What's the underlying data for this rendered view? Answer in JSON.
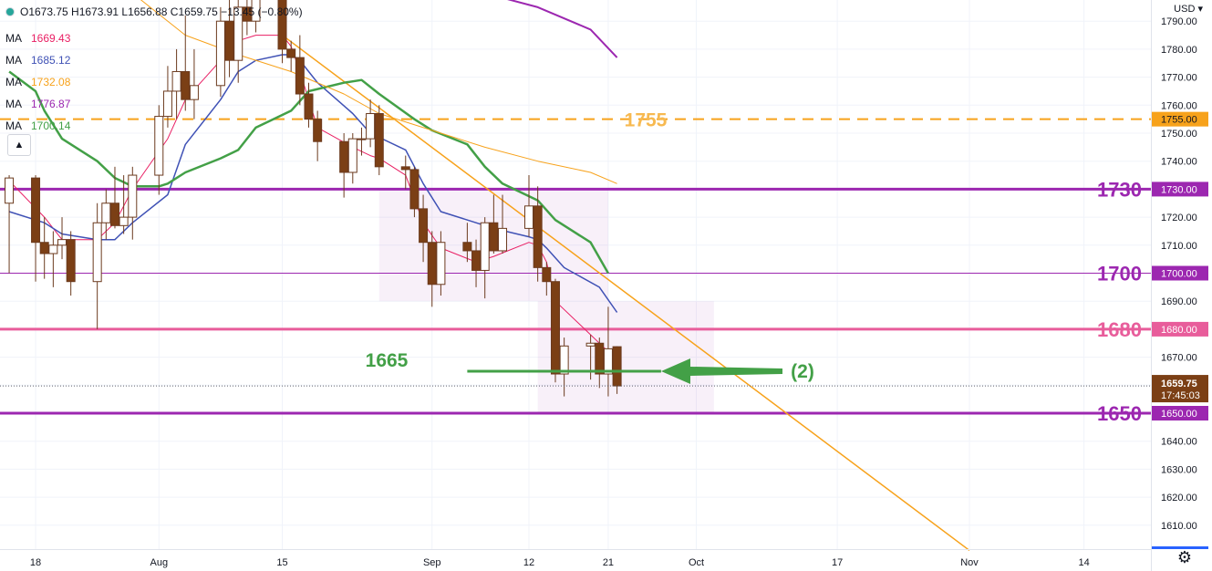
{
  "header": {
    "ohlc_label": "O1673.75 H1673.91 L1656.88 C1659.75 −13.45 (−0.80%)",
    "currency": "USD"
  },
  "ma_legend": [
    {
      "label": "MA",
      "value": "1669.43",
      "color": "#e91e63"
    },
    {
      "label": "MA",
      "value": "1685.12",
      "color": "#3f51b5"
    },
    {
      "label": "MA",
      "value": "1732.08",
      "color": "#f7a21b"
    },
    {
      "label": "MA",
      "value": "1776.87",
      "color": "#9c27b0"
    },
    {
      "label": "MA",
      "value": "1700.14",
      "color": "#43a047"
    }
  ],
  "collapse_icon": "chevron-up-icon",
  "settings_icon": "gear-icon",
  "chart_data": {
    "type": "candlestick",
    "ylim": [
      1601,
      1795
    ],
    "y_ticks": [
      1610,
      1620,
      1630,
      1640,
      1650,
      1660,
      1670,
      1680,
      1690,
      1700,
      1710,
      1720,
      1730,
      1740,
      1750,
      1760,
      1770,
      1780,
      1790
    ],
    "x_ticks": [
      {
        "label": "18",
        "date": "2022-07-18"
      },
      {
        "label": "Aug",
        "date": "2022-08-01"
      },
      {
        "label": "15",
        "date": "2022-08-15"
      },
      {
        "label": "Sep",
        "date": "2022-09-01"
      },
      {
        "label": "12",
        "date": "2022-09-12"
      },
      {
        "label": "21",
        "date": "2022-09-21"
      },
      {
        "label": "Oct",
        "date": "2022-10-01"
      },
      {
        "label": "17",
        "date": "2022-10-17"
      },
      {
        "label": "Nov",
        "date": "2022-11-01"
      },
      {
        "label": "14",
        "date": "2022-11-14"
      }
    ],
    "candles": [
      {
        "date": "2022-07-15",
        "o": 1725,
        "h": 1735,
        "l": 1700,
        "c": 1734
      },
      {
        "date": "2022-07-18",
        "o": 1734,
        "h": 1735,
        "l": 1697,
        "c": 1711
      },
      {
        "date": "2022-07-19",
        "o": 1711,
        "h": 1720,
        "l": 1698,
        "c": 1707
      },
      {
        "date": "2022-07-20",
        "o": 1707,
        "h": 1715,
        "l": 1695,
        "c": 1710
      },
      {
        "date": "2022-07-21",
        "o": 1710,
        "h": 1720,
        "l": 1705,
        "c": 1712
      },
      {
        "date": "2022-07-22",
        "o": 1712,
        "h": 1715,
        "l": 1692,
        "c": 1697
      },
      {
        "date": "2022-07-25",
        "o": 1697,
        "h": 1725,
        "l": 1680,
        "c": 1718
      },
      {
        "date": "2022-07-26",
        "o": 1718,
        "h": 1730,
        "l": 1712,
        "c": 1725
      },
      {
        "date": "2022-07-27",
        "o": 1725,
        "h": 1738,
        "l": 1716,
        "c": 1717
      },
      {
        "date": "2022-07-28",
        "o": 1717,
        "h": 1735,
        "l": 1714,
        "c": 1720
      },
      {
        "date": "2022-07-29",
        "o": 1720,
        "h": 1738,
        "l": 1712,
        "c": 1735
      },
      {
        "date": "2022-08-01",
        "o": 1735,
        "h": 1760,
        "l": 1728,
        "c": 1756
      },
      {
        "date": "2022-08-02",
        "o": 1756,
        "h": 1774,
        "l": 1752,
        "c": 1765
      },
      {
        "date": "2022-08-03",
        "o": 1765,
        "h": 1780,
        "l": 1755,
        "c": 1772
      },
      {
        "date": "2022-08-04",
        "o": 1772,
        "h": 1792,
        "l": 1758,
        "c": 1762
      },
      {
        "date": "2022-08-05",
        "o": 1762,
        "h": 1780,
        "l": 1755,
        "c": 1767
      },
      {
        "date": "2022-08-08",
        "o": 1767,
        "h": 1795,
        "l": 1763,
        "c": 1790
      },
      {
        "date": "2022-08-09",
        "o": 1790,
        "h": 1798,
        "l": 1770,
        "c": 1776
      },
      {
        "date": "2022-08-10",
        "o": 1776,
        "h": 1800,
        "l": 1768,
        "c": 1795
      },
      {
        "date": "2022-08-11",
        "o": 1795,
        "h": 1802,
        "l": 1785,
        "c": 1790
      },
      {
        "date": "2022-08-12",
        "o": 1790,
        "h": 1805,
        "l": 1786,
        "c": 1800
      },
      {
        "date": "2022-08-15",
        "o": 1800,
        "h": 1805,
        "l": 1775,
        "c": 1780
      },
      {
        "date": "2022-08-16",
        "o": 1780,
        "h": 1783,
        "l": 1772,
        "c": 1777
      },
      {
        "date": "2022-08-17",
        "o": 1777,
        "h": 1785,
        "l": 1760,
        "c": 1764
      },
      {
        "date": "2022-08-18",
        "o": 1764,
        "h": 1768,
        "l": 1752,
        "c": 1755
      },
      {
        "date": "2022-08-19",
        "o": 1755,
        "h": 1758,
        "l": 1740,
        "c": 1747
      },
      {
        "date": "2022-08-22",
        "o": 1747,
        "h": 1750,
        "l": 1727,
        "c": 1736
      },
      {
        "date": "2022-08-23",
        "o": 1736,
        "h": 1750,
        "l": 1732,
        "c": 1748
      },
      {
        "date": "2022-08-24",
        "o": 1748,
        "h": 1752,
        "l": 1742,
        "c": 1748
      },
      {
        "date": "2022-08-25",
        "o": 1748,
        "h": 1762,
        "l": 1745,
        "c": 1757
      },
      {
        "date": "2022-08-26",
        "o": 1757,
        "h": 1760,
        "l": 1735,
        "c": 1738
      },
      {
        "date": "2022-08-29",
        "o": 1738,
        "h": 1742,
        "l": 1730,
        "c": 1737
      },
      {
        "date": "2022-08-30",
        "o": 1737,
        "h": 1738,
        "l": 1720,
        "c": 1723
      },
      {
        "date": "2022-08-31",
        "o": 1723,
        "h": 1728,
        "l": 1704,
        "c": 1711
      },
      {
        "date": "2022-09-01",
        "o": 1711,
        "h": 1715,
        "l": 1688,
        "c": 1696
      },
      {
        "date": "2022-09-02",
        "o": 1696,
        "h": 1715,
        "l": 1692,
        "c": 1711
      },
      {
        "date": "2022-09-05",
        "o": 1711,
        "h": 1718,
        "l": 1704,
        "c": 1708
      },
      {
        "date": "2022-09-06",
        "o": 1708,
        "h": 1712,
        "l": 1695,
        "c": 1701
      },
      {
        "date": "2022-09-07",
        "o": 1701,
        "h": 1720,
        "l": 1691,
        "c": 1718
      },
      {
        "date": "2022-09-08",
        "o": 1718,
        "h": 1728,
        "l": 1707,
        "c": 1708
      },
      {
        "date": "2022-09-09",
        "o": 1708,
        "h": 1728,
        "l": 1707,
        "c": 1716
      },
      {
        "date": "2022-09-12",
        "o": 1716,
        "h": 1735,
        "l": 1713,
        "c": 1724
      },
      {
        "date": "2022-09-13",
        "o": 1724,
        "h": 1731,
        "l": 1697,
        "c": 1702
      },
      {
        "date": "2022-09-14",
        "o": 1702,
        "h": 1704,
        "l": 1692,
        "c": 1697
      },
      {
        "date": "2022-09-15",
        "o": 1697,
        "h": 1698,
        "l": 1661,
        "c": 1664
      },
      {
        "date": "2022-09-16",
        "o": 1664,
        "h": 1677,
        "l": 1656,
        "c": 1674
      },
      {
        "date": "2022-09-19",
        "o": 1674,
        "h": 1678,
        "l": 1662,
        "c": 1675
      },
      {
        "date": "2022-09-20",
        "o": 1675,
        "h": 1677,
        "l": 1659,
        "c": 1664
      },
      {
        "date": "2022-09-21",
        "o": 1664,
        "h": 1688,
        "l": 1656,
        "c": 1673
      },
      {
        "date": "2022-09-22",
        "o": 1673.75,
        "h": 1673.91,
        "l": 1656.88,
        "c": 1659.75
      }
    ],
    "moving_averages": [
      {
        "value": "1669.43",
        "color": "#e91e63",
        "width": 1,
        "points": [
          [
            0,
            1733
          ],
          [
            2,
            1720
          ],
          [
            4,
            1712
          ],
          [
            6,
            1712
          ],
          [
            8,
            1718
          ],
          [
            10,
            1730
          ],
          [
            12,
            1748
          ],
          [
            14,
            1762
          ],
          [
            16,
            1776
          ],
          [
            18,
            1783
          ],
          [
            20,
            1785
          ],
          [
            21,
            1785
          ],
          [
            22,
            1781
          ],
          [
            23,
            1772
          ],
          [
            24,
            1762
          ],
          [
            25,
            1752
          ],
          [
            27,
            1745
          ],
          [
            29,
            1742
          ],
          [
            30,
            1741
          ],
          [
            31,
            1735
          ],
          [
            33,
            1718
          ],
          [
            35,
            1709
          ],
          [
            37,
            1704
          ],
          [
            39,
            1706
          ],
          [
            41,
            1711
          ],
          [
            42,
            1710
          ],
          [
            43,
            1704
          ],
          [
            44,
            1690
          ],
          [
            46,
            1678
          ],
          [
            47,
            1675
          ],
          [
            49,
            1669
          ]
        ]
      },
      {
        "value": "1685.12",
        "color": "#3f51b5",
        "width": 1.5,
        "points": [
          [
            0,
            1722
          ],
          [
            2,
            1718
          ],
          [
            4,
            1714
          ],
          [
            6,
            1712
          ],
          [
            8,
            1712
          ],
          [
            10,
            1718
          ],
          [
            12,
            1728
          ],
          [
            14,
            1746
          ],
          [
            16,
            1762
          ],
          [
            18,
            1772
          ],
          [
            20,
            1776
          ],
          [
            21,
            1778
          ],
          [
            22,
            1778
          ],
          [
            23,
            1776
          ],
          [
            24,
            1772
          ],
          [
            25,
            1768
          ],
          [
            27,
            1757
          ],
          [
            29,
            1750
          ],
          [
            31,
            1744
          ],
          [
            33,
            1732
          ],
          [
            35,
            1722
          ],
          [
            37,
            1718
          ],
          [
            39,
            1716
          ],
          [
            41,
            1713
          ],
          [
            42,
            1712
          ],
          [
            43,
            1709
          ],
          [
            45,
            1702
          ],
          [
            47,
            1695
          ],
          [
            49,
            1686
          ]
        ]
      },
      {
        "value": "1700.14",
        "color": "#43a047",
        "width": 2.5,
        "points": [
          [
            0,
            1772
          ],
          [
            1,
            1765
          ],
          [
            2,
            1758
          ],
          [
            4,
            1748
          ],
          [
            6,
            1740
          ],
          [
            8,
            1734
          ],
          [
            10,
            1731
          ],
          [
            11,
            1731
          ],
          [
            12,
            1732
          ],
          [
            14,
            1736
          ],
          [
            16,
            1741
          ],
          [
            18,
            1744
          ],
          [
            20,
            1752
          ],
          [
            22,
            1758
          ],
          [
            24,
            1765
          ],
          [
            26,
            1768
          ],
          [
            28,
            1769
          ],
          [
            30,
            1764
          ],
          [
            32,
            1755
          ],
          [
            34,
            1751
          ],
          [
            36,
            1746
          ],
          [
            38,
            1738
          ],
          [
            40,
            1732
          ],
          [
            42,
            1726
          ],
          [
            44,
            1719
          ],
          [
            46,
            1711
          ],
          [
            48,
            1700
          ]
        ]
      },
      {
        "value": "1732.08",
        "color": "#f7a21b",
        "width": 1,
        "points": [
          [
            10,
            1800
          ],
          [
            14,
            1785
          ],
          [
            18,
            1778
          ],
          [
            22,
            1772
          ],
          [
            26,
            1764
          ],
          [
            30,
            1757
          ],
          [
            34,
            1751
          ],
          [
            38,
            1745
          ],
          [
            42,
            1740
          ],
          [
            46,
            1736
          ],
          [
            49,
            1732
          ]
        ]
      },
      {
        "value": "1776.87",
        "color": "#9c27b0",
        "width": 2,
        "points": [
          [
            38,
            1800
          ],
          [
            42,
            1795
          ],
          [
            46,
            1787
          ],
          [
            49,
            1777
          ]
        ]
      }
    ],
    "trend_line": {
      "color": "#f7a21b",
      "from": {
        "date": "2022-08-15",
        "value": 1785
      },
      "to": {
        "date": "2022-11-01",
        "value": 1601
      }
    },
    "levels": [
      {
        "label": "1755",
        "value": 1755,
        "color": "#f7a21b",
        "style": "dashed",
        "tag": "1755.00"
      },
      {
        "label": "1730",
        "value": 1730,
        "color": "#9c27b0",
        "style": "solid",
        "tag": "1730.00"
      },
      {
        "label": "1700",
        "value": 1700,
        "color": "#9c27b0",
        "style": "thin",
        "tag": "1700.00"
      },
      {
        "label": "1680",
        "value": 1680,
        "color": "#e85d9b",
        "style": "solid",
        "tag": "1680.00"
      },
      {
        "label": "1650",
        "value": 1650,
        "color": "#9c27b0",
        "style": "solid",
        "tag": "1650.00"
      }
    ],
    "zones": [
      {
        "from": "2022-08-26",
        "to": "2022-09-21",
        "top": 1730,
        "bottom": 1690
      },
      {
        "from": "2022-09-13",
        "to": "2022-10-03",
        "top": 1690,
        "bottom": 1650
      }
    ],
    "annotation_line": {
      "label": "1665",
      "value": 1665,
      "from": "2022-09-05",
      "to": "2022-09-27",
      "color": "#43a047"
    },
    "arrow": {
      "label": "(2)",
      "value": 1665,
      "color": "#43a047"
    },
    "last_price": {
      "value": "1659.75",
      "countdown": "17:45:03",
      "y": 1659.75
    }
  }
}
